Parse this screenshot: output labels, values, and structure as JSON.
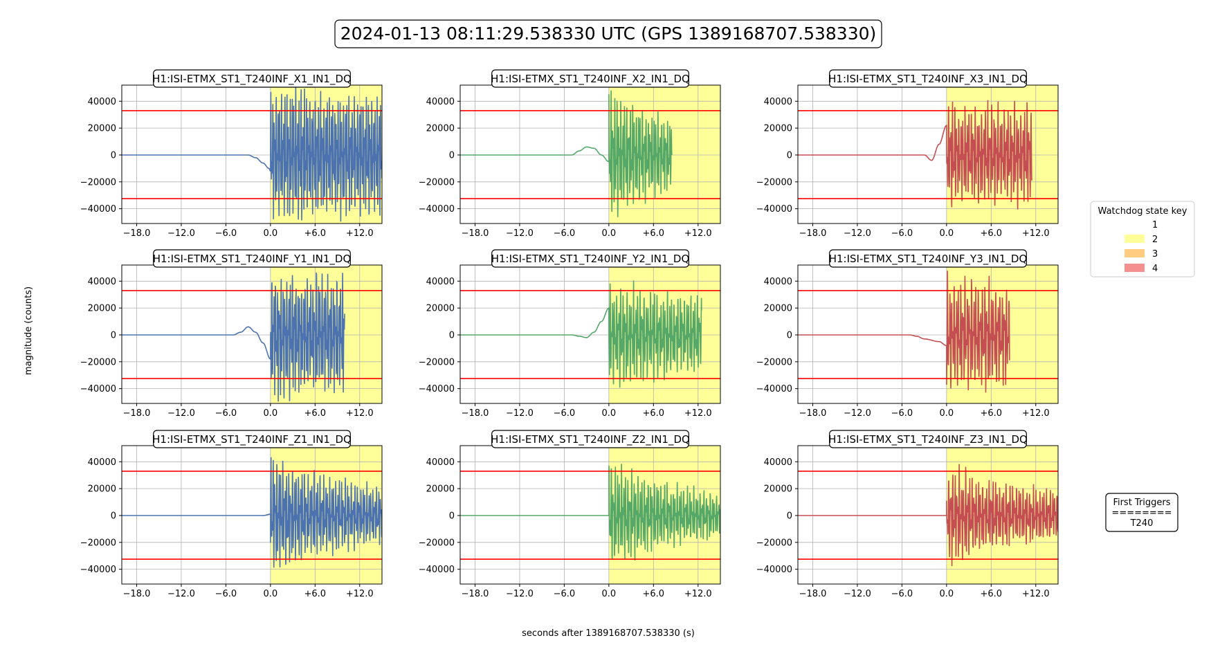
{
  "figure": {
    "title": "2024-01-13 08:11:29.538330 UTC (GPS 1389168707.538330)",
    "xlabel": "seconds after 1389168707.538330 (s)",
    "ylabel": "magnitude (counts)"
  },
  "legend": {
    "title": "Watchdog state key",
    "items": [
      {
        "label": "1",
        "color": "#ffffff"
      },
      {
        "label": "2",
        "color": "#ffff99"
      },
      {
        "label": "3",
        "color": "#ffcc80"
      },
      {
        "label": "4",
        "color": "#f4908f"
      }
    ]
  },
  "triggers": {
    "title": "First Triggers",
    "separator": "========",
    "value": "T240"
  },
  "chart_data": [
    {
      "type": "line",
      "title": "H1:ISI-ETMX_ST1_T240INF_X1_IN1_DQ",
      "color": "#4c72b0",
      "xlim": [
        -20,
        15
      ],
      "ylim": [
        -51000,
        52000
      ],
      "thresholds": [
        33000,
        -32500
      ],
      "xticks": [
        -18,
        -12,
        -6,
        0,
        6,
        12
      ],
      "xtick_labels": [
        "−18.0",
        "−12.0",
        "−6.0",
        "0.0",
        "+6.0",
        "+12.0"
      ],
      "yticks": [
        40000,
        20000,
        0,
        -20000,
        -40000
      ],
      "ytick_labels": [
        "40000",
        "20000",
        "0",
        "−20000",
        "−40000"
      ],
      "state_span": {
        "state": 2,
        "x": [
          0,
          15
        ]
      },
      "series": [
        {
          "x": [
            -20,
            -5,
            -3,
            -2,
            -1,
            -0.2,
            0
          ],
          "y": [
            0,
            0,
            0,
            -2000,
            -6000,
            -10000,
            -12000
          ]
        }
      ],
      "burst": {
        "x": [
          0,
          15
        ],
        "amplitude": [
          46000,
          33000
        ],
        "decay": 0.05,
        "freq": 4.2
      }
    },
    {
      "type": "line",
      "title": "H1:ISI-ETMX_ST1_T240INF_X2_IN1_DQ",
      "color": "#55a868",
      "xlim": [
        -20,
        15
      ],
      "ylim": [
        -51000,
        52000
      ],
      "thresholds": [
        33000,
        -32500
      ],
      "xticks": [
        -18,
        -12,
        -6,
        0,
        6,
        12
      ],
      "xtick_labels": [
        "−18.0",
        "−12.0",
        "−6.0",
        "0.0",
        "+6.0",
        "+12.0"
      ],
      "yticks": [
        40000,
        20000,
        0,
        -20000,
        -40000
      ],
      "ytick_labels": [
        "40000",
        "20000",
        "0",
        "−20000",
        "−40000"
      ],
      "state_span": {
        "state": 2,
        "x": [
          0,
          15
        ]
      },
      "series": [
        {
          "x": [
            -20,
            -5,
            -4,
            -3,
            -2,
            -1,
            0
          ],
          "y": [
            0,
            0,
            3000,
            6000,
            5000,
            0,
            -5000
          ]
        }
      ],
      "burst": {
        "x": [
          0,
          8.5
        ],
        "amplitude": [
          46000,
          15000
        ],
        "decay": 0.14,
        "freq": 3.8
      }
    },
    {
      "type": "line",
      "title": "H1:ISI-ETMX_ST1_T240INF_X3_IN1_DQ",
      "color": "#c44e52",
      "xlim": [
        -20,
        15
      ],
      "ylim": [
        -51000,
        52000
      ],
      "thresholds": [
        33000,
        -32500
      ],
      "xticks": [
        -18,
        -12,
        -6,
        0,
        6,
        12
      ],
      "xtick_labels": [
        "−18.0",
        "−12.0",
        "−6.0",
        "0.0",
        "+6.0",
        "+12.0"
      ],
      "yticks": [
        40000,
        20000,
        0,
        -20000,
        -40000
      ],
      "ytick_labels": [
        "40000",
        "20000",
        "0",
        "−20000",
        "−40000"
      ],
      "state_span": {
        "state": 2,
        "x": [
          0,
          15
        ]
      },
      "series": [
        {
          "x": [
            -20,
            -3,
            -2,
            -1,
            0
          ],
          "y": [
            0,
            0,
            -4000,
            8000,
            22000
          ]
        }
      ],
      "burst": {
        "x": [
          0,
          11.5
        ],
        "amplitude": [
          35000,
          33000
        ],
        "decay": 0.02,
        "freq": 3.6
      }
    },
    {
      "type": "line",
      "title": "H1:ISI-ETMX_ST1_T240INF_Y1_IN1_DQ",
      "color": "#4c72b0",
      "xlim": [
        -20,
        15
      ],
      "ylim": [
        -51000,
        52000
      ],
      "thresholds": [
        33000,
        -32500
      ],
      "xticks": [
        -18,
        -12,
        -6,
        0,
        6,
        12
      ],
      "xtick_labels": [
        "−18.0",
        "−12.0",
        "−6.0",
        "0.0",
        "+6.0",
        "+12.0"
      ],
      "yticks": [
        40000,
        20000,
        0,
        -20000,
        -40000
      ],
      "ytick_labels": [
        "40000",
        "20000",
        "0",
        "−20000",
        "−40000"
      ],
      "state_span": {
        "state": 2,
        "x": [
          0,
          15
        ]
      },
      "series": [
        {
          "x": [
            -20,
            -5,
            -4,
            -3,
            -2,
            -1,
            0
          ],
          "y": [
            0,
            0,
            2000,
            6000,
            2000,
            -6000,
            -18000
          ]
        }
      ],
      "burst": {
        "x": [
          0,
          10
        ],
        "amplitude": [
          44000,
          32000
        ],
        "decay": 0.03,
        "freq": 4.0
      }
    },
    {
      "type": "line",
      "title": "H1:ISI-ETMX_ST1_T240INF_Y2_IN1_DQ",
      "color": "#55a868",
      "xlim": [
        -20,
        15
      ],
      "ylim": [
        -51000,
        52000
      ],
      "thresholds": [
        33000,
        -32500
      ],
      "xticks": [
        -18,
        -12,
        -6,
        0,
        6,
        12
      ],
      "xtick_labels": [
        "−18.0",
        "−12.0",
        "−6.0",
        "0.0",
        "+6.0",
        "+12.0"
      ],
      "yticks": [
        40000,
        20000,
        0,
        -20000,
        -40000
      ],
      "ytick_labels": [
        "40000",
        "20000",
        "0",
        "−20000",
        "−40000"
      ],
      "state_span": {
        "state": 2,
        "x": [
          0,
          15
        ]
      },
      "series": [
        {
          "x": [
            -20,
            -5,
            -4,
            -3,
            -2,
            -1,
            0
          ],
          "y": [
            0,
            0,
            -1000,
            -2000,
            2000,
            10000,
            20000
          ]
        }
      ],
      "burst": {
        "x": [
          0,
          12.5
        ],
        "amplitude": [
          36000,
          20000
        ],
        "decay": 0.1,
        "freq": 3.5
      }
    },
    {
      "type": "line",
      "title": "H1:ISI-ETMX_ST1_T240INF_Y3_IN1_DQ",
      "color": "#c44e52",
      "xlim": [
        -20,
        15
      ],
      "ylim": [
        -51000,
        52000
      ],
      "thresholds": [
        33000,
        -32500
      ],
      "xticks": [
        -18,
        -12,
        -6,
        0,
        6,
        12
      ],
      "xtick_labels": [
        "−18.0",
        "−12.0",
        "−6.0",
        "0.0",
        "+6.0",
        "+12.0"
      ],
      "yticks": [
        40000,
        20000,
        0,
        -20000,
        -40000
      ],
      "ytick_labels": [
        "40000",
        "20000",
        "0",
        "−20000",
        "−40000"
      ],
      "state_span": {
        "state": 2,
        "x": [
          0,
          15
        ]
      },
      "series": [
        {
          "x": [
            -20,
            -5,
            -4,
            -3,
            -1,
            0
          ],
          "y": [
            0,
            0,
            -1000,
            -3000,
            -5000,
            -8000
          ]
        }
      ],
      "burst": {
        "x": [
          0,
          8.5
        ],
        "amplitude": [
          40000,
          30000
        ],
        "decay": 0.04,
        "freq": 3.4
      }
    },
    {
      "type": "line",
      "title": "H1:ISI-ETMX_ST1_T240INF_Z1_IN1_DQ",
      "color": "#4c72b0",
      "xlim": [
        -20,
        15
      ],
      "ylim": [
        -51000,
        52000
      ],
      "thresholds": [
        33000,
        -32500
      ],
      "xticks": [
        -18,
        -12,
        -6,
        0,
        6,
        12
      ],
      "xtick_labels": [
        "−18.0",
        "−12.0",
        "−6.0",
        "0.0",
        "+6.0",
        "+12.0"
      ],
      "yticks": [
        40000,
        20000,
        0,
        -20000,
        -40000
      ],
      "ytick_labels": [
        "40000",
        "20000",
        "0",
        "−20000",
        "−40000"
      ],
      "state_span": {
        "state": 2,
        "x": [
          0,
          15
        ]
      },
      "series": [
        {
          "x": [
            -20,
            -1,
            0
          ],
          "y": [
            0,
            0,
            1000
          ]
        }
      ],
      "burst": {
        "x": [
          0,
          15
        ],
        "amplitude": [
          42000,
          9000
        ],
        "decay": 0.15,
        "freq": 3.8
      }
    },
    {
      "type": "line",
      "title": "H1:ISI-ETMX_ST1_T240INF_Z2_IN1_DQ",
      "color": "#55a868",
      "xlim": [
        -20,
        15
      ],
      "ylim": [
        -51000,
        52000
      ],
      "thresholds": [
        33000,
        -32500
      ],
      "xticks": [
        -18,
        -12,
        -6,
        0,
        6,
        12
      ],
      "xtick_labels": [
        "−18.0",
        "−12.0",
        "−6.0",
        "0.0",
        "+6.0",
        "+12.0"
      ],
      "yticks": [
        40000,
        20000,
        0,
        -20000,
        -40000
      ],
      "ytick_labels": [
        "40000",
        "20000",
        "0",
        "−20000",
        "−40000"
      ],
      "state_span": {
        "state": 2,
        "x": [
          0,
          15
        ]
      },
      "series": [
        {
          "x": [
            -20,
            -1,
            0
          ],
          "y": [
            0,
            0,
            0
          ]
        }
      ],
      "burst": {
        "x": [
          0,
          15
        ],
        "amplitude": [
          37000,
          7000
        ],
        "decay": 0.16,
        "freq": 3.6
      }
    },
    {
      "type": "line",
      "title": "H1:ISI-ETMX_ST1_T240INF_Z3_IN1_DQ",
      "color": "#c44e52",
      "xlim": [
        -20,
        15
      ],
      "ylim": [
        -51000,
        52000
      ],
      "thresholds": [
        33000,
        -32500
      ],
      "xticks": [
        -18,
        -12,
        -6,
        0,
        6,
        12
      ],
      "xtick_labels": [
        "−18.0",
        "−12.0",
        "−6.0",
        "0.0",
        "+6.0",
        "+12.0"
      ],
      "yticks": [
        40000,
        20000,
        0,
        -20000,
        -40000
      ],
      "ytick_labels": [
        "40000",
        "20000",
        "0",
        "−20000",
        "−40000"
      ],
      "state_span": {
        "state": 2,
        "x": [
          0,
          15
        ]
      },
      "series": [
        {
          "x": [
            -20,
            -1,
            0
          ],
          "y": [
            0,
            0,
            0
          ]
        }
      ],
      "burst": {
        "x": [
          0,
          15
        ],
        "amplitude": [
          35000,
          9000
        ],
        "decay": 0.14,
        "freq": 3.5
      }
    }
  ]
}
